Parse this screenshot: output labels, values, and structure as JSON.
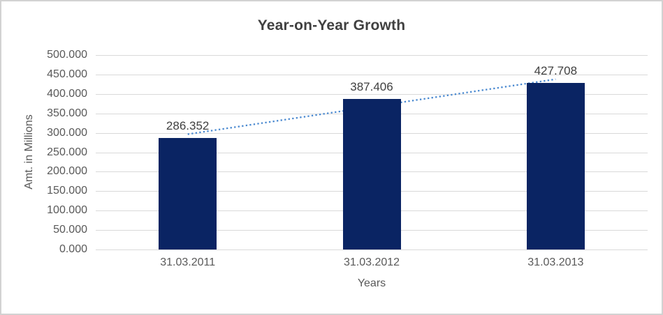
{
  "chart_data": {
    "type": "bar",
    "title": "Year-on-Year Growth",
    "xlabel": "Years",
    "ylabel": "Amt. in Millions",
    "categories": [
      "31.03.2011",
      "31.03.2012",
      "31.03.2013"
    ],
    "values": [
      286.352,
      387.406,
      427.708
    ],
    "value_labels": [
      "286.352",
      "387.406",
      "427.708"
    ],
    "ylim": [
      0,
      500
    ],
    "y_tick_step": 50,
    "y_tick_labels": [
      "500.000",
      "450.000",
      "400.000",
      "350.000",
      "300.000",
      "250.000",
      "200.000",
      "150.000",
      "100.000",
      "50.000",
      "0.000"
    ],
    "grid": true,
    "legend": false,
    "trendline": {
      "type": "linear",
      "style": "dotted",
      "start_value": 296.5,
      "end_value": 437.8
    },
    "colors": {
      "bar": "#0a2463",
      "trendline": "#4a89d0",
      "gridline": "#d9d9d9",
      "axis_text": "#595959",
      "title_text": "#404040",
      "data_label_text": "#404040",
      "frame_border": "#d2d2d2",
      "background": "#ffffff"
    }
  }
}
